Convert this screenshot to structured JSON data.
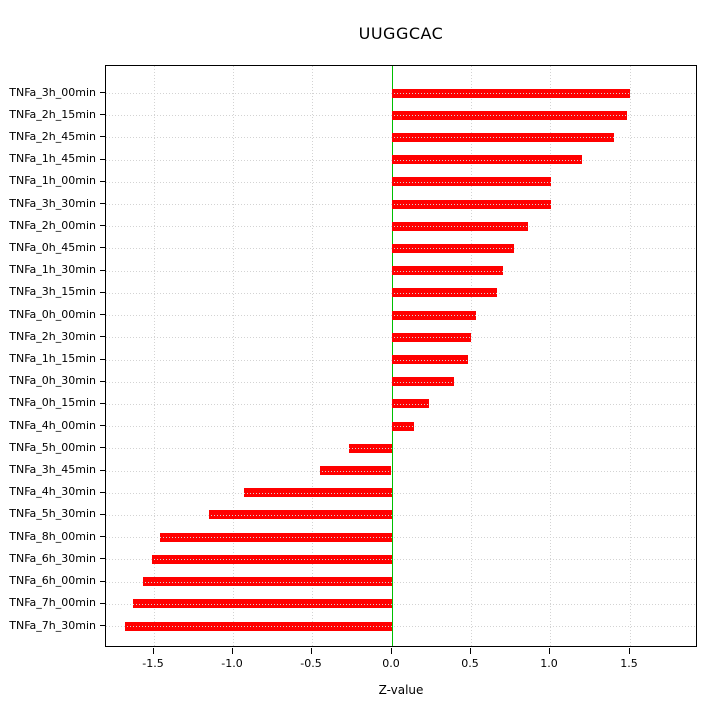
{
  "chart_data": {
    "type": "bar",
    "orientation": "horizontal",
    "title": "UUGGCAC",
    "xlabel": "Z-value",
    "ylabel": "",
    "grid": true,
    "legend_position": "none",
    "xlim": [
      -1.8,
      1.93
    ],
    "xticks": [
      {
        "value": -1.5,
        "label": "-1.5"
      },
      {
        "value": -1.0,
        "label": "-1.0"
      },
      {
        "value": -0.5,
        "label": "-0.5"
      },
      {
        "value": 0.0,
        "label": "0.0"
      },
      {
        "value": 0.5,
        "label": "0.5"
      },
      {
        "value": 1.0,
        "label": "1.0"
      },
      {
        "value": 1.5,
        "label": "1.5"
      }
    ],
    "categories": [
      "TNFa_3h_00min",
      "TNFa_2h_15min",
      "TNFa_2h_45min",
      "TNFa_1h_45min",
      "TNFa_1h_00min",
      "TNFa_3h_30min",
      "TNFa_2h_00min",
      "TNFa_0h_45min",
      "TNFa_1h_30min",
      "TNFa_3h_15min",
      "TNFa_0h_00min",
      "TNFa_2h_30min",
      "TNFa_1h_15min",
      "TNFa_0h_30min",
      "TNFa_0h_15min",
      "TNFa_4h_00min",
      "TNFa_5h_00min",
      "TNFa_3h_45min",
      "TNFa_4h_30min",
      "TNFa_5h_30min",
      "TNFa_8h_00min",
      "TNFa_6h_30min",
      "TNFa_6h_00min",
      "TNFa_7h_00min",
      "TNFa_7h_30min"
    ],
    "values": [
      1.5,
      1.48,
      1.4,
      1.2,
      1.0,
      1.0,
      0.86,
      0.77,
      0.7,
      0.66,
      0.53,
      0.5,
      0.48,
      0.39,
      0.23,
      0.14,
      -0.27,
      -0.45,
      -0.93,
      -1.15,
      -1.46,
      -1.51,
      -1.57,
      -1.63,
      -1.68
    ],
    "bar_color": "#ff0000",
    "zero_line_color": "#00c000",
    "grid_color": "#d3d3d3",
    "axis_color": "#000000"
  }
}
